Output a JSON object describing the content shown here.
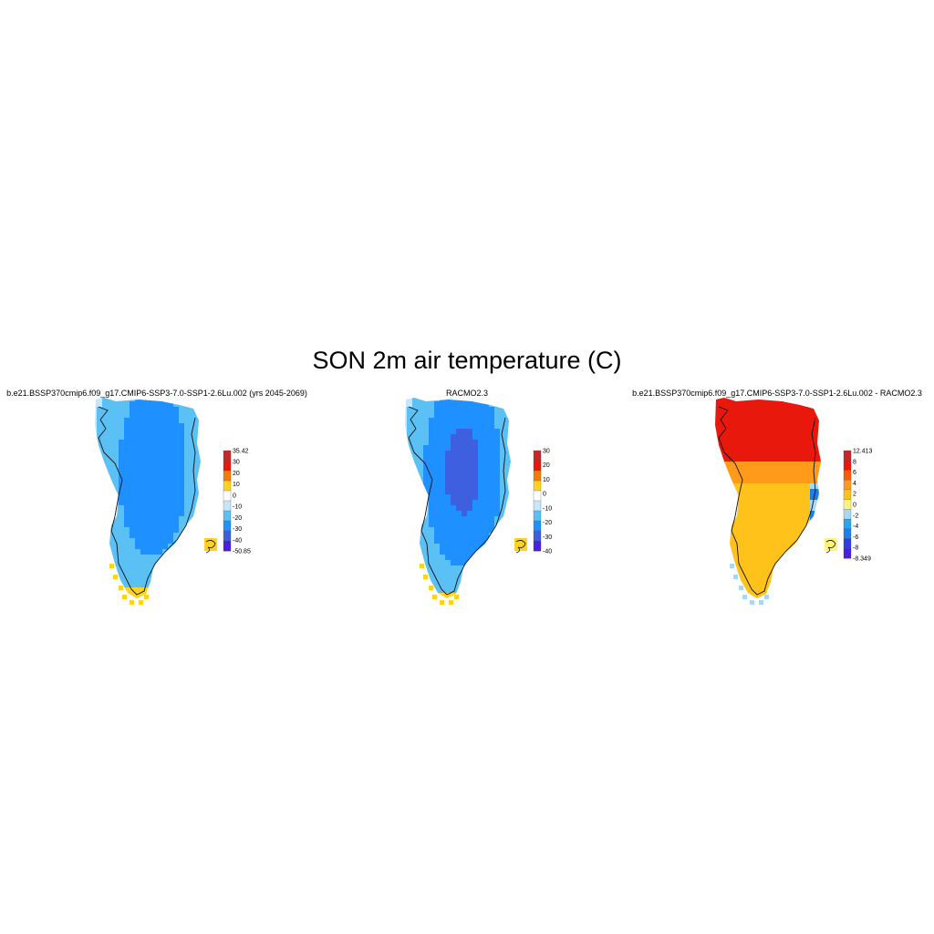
{
  "figure": {
    "title": "SON 2m air temperature (C)"
  },
  "panels": [
    {
      "title": "b.e21.BSSP370cmip6.f09_g17.CMIP6-SSP3-7.0-SSP1-2.6Lu.002 (yrs 2045-2069)",
      "colorbar": {
        "labels": [
          "35.42",
          "30",
          "20",
          "10",
          "0",
          "-10",
          "-20",
          "-30",
          "-40",
          "-50.85"
        ],
        "colors": [
          "#c62828",
          "#e8190c",
          "#f57c00",
          "#ffd21f",
          "#ffffff",
          "#c6e6fb",
          "#5bc1f5",
          "#1e90ff",
          "#3d5fe0",
          "#4b1ee0"
        ]
      },
      "field": "model"
    },
    {
      "title": "RACMO2.3",
      "colorbar": {
        "labels": [
          "30",
          "20",
          "10",
          "0",
          "-10",
          "-20",
          "-30",
          "-40"
        ],
        "colors": [
          "#c62828",
          "#e8190c",
          "#f57c00",
          "#ffd21f",
          "#ffffff",
          "#c6e6fb",
          "#5bc1f5",
          "#1e90ff",
          "#3d5fe0",
          "#4b1ee0"
        ]
      },
      "field": "obs"
    },
    {
      "title": "b.e21.BSSP370cmip6.f09_g17.CMIP6-SSP3-7.0-SSP1-2.6Lu.002 - RACMO2.3",
      "colorbar": {
        "labels": [
          "12.413",
          "8",
          "6",
          "4",
          "2",
          "0",
          "-2",
          "-4",
          "-6",
          "-8",
          "-8.349"
        ],
        "colors": [
          "#c62828",
          "#e8190c",
          "#ff5a00",
          "#ff9a1a",
          "#ffc21a",
          "#fff37a",
          "#a9d8f5",
          "#2aa6ee",
          "#1f7fe8",
          "#2d3fe0",
          "#4b1ee0"
        ]
      },
      "field": "diff"
    }
  ]
}
